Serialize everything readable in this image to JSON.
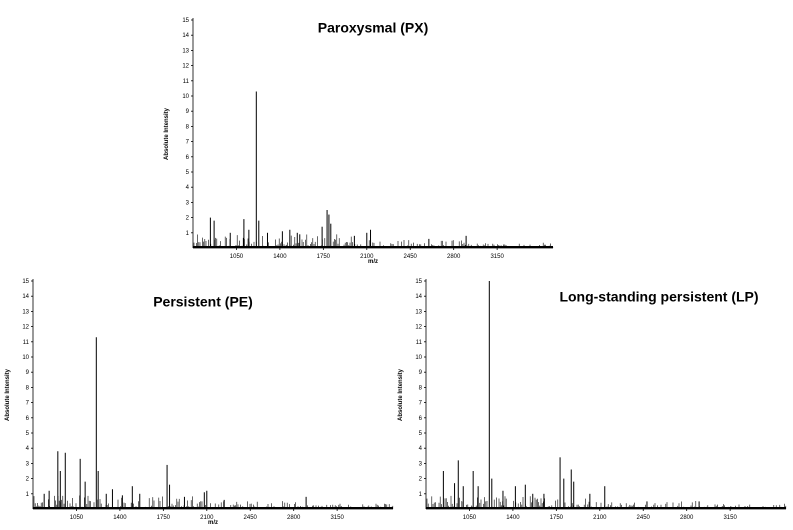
{
  "chart_data": [
    {
      "type": "line",
      "title": "Paroxysmal (PX)",
      "xlabel": "m/z",
      "ylabel": "Absolute Intensity",
      "ylim": [
        0,
        15
      ],
      "xlim": [
        700,
        3600
      ],
      "xticks": [
        1050,
        1400,
        1750,
        2100,
        2450,
        2800,
        3150
      ],
      "yticks": [
        1,
        2,
        3,
        4,
        5,
        6,
        7,
        8,
        9,
        10,
        11,
        12,
        13,
        14,
        15
      ],
      "grid": false,
      "peaks": [
        {
          "x": 840,
          "y": 2.0
        },
        {
          "x": 870,
          "y": 1.8
        },
        {
          "x": 1000,
          "y": 1.0
        },
        {
          "x": 1110,
          "y": 1.9
        },
        {
          "x": 1150,
          "y": 1.2
        },
        {
          "x": 1210,
          "y": 10.3
        },
        {
          "x": 1230,
          "y": 1.8
        },
        {
          "x": 1300,
          "y": 1.0
        },
        {
          "x": 1420,
          "y": 1.1
        },
        {
          "x": 1480,
          "y": 1.2
        },
        {
          "x": 1540,
          "y": 1.0
        },
        {
          "x": 1560,
          "y": 0.9
        },
        {
          "x": 1740,
          "y": 1.4
        },
        {
          "x": 1780,
          "y": 2.5
        },
        {
          "x": 1795,
          "y": 2.2
        },
        {
          "x": 1810,
          "y": 1.6
        },
        {
          "x": 2000,
          "y": 0.8
        },
        {
          "x": 2100,
          "y": 1.0
        },
        {
          "x": 2130,
          "y": 1.2
        },
        {
          "x": 2600,
          "y": 0.6
        },
        {
          "x": 2900,
          "y": 0.8
        }
      ]
    },
    {
      "type": "line",
      "title": "Persistent (PE)",
      "xlabel": "m/z",
      "ylabel": "Absolute Intensity",
      "ylim": [
        0,
        15
      ],
      "xlim": [
        700,
        3600
      ],
      "xticks": [
        1050,
        1400,
        1750,
        2100,
        2450,
        2800,
        3150
      ],
      "yticks": [
        1,
        2,
        3,
        4,
        5,
        6,
        7,
        8,
        9,
        10,
        11,
        12,
        13,
        14,
        15
      ],
      "grid": false,
      "peaks": [
        {
          "x": 790,
          "y": 1.0
        },
        {
          "x": 830,
          "y": 1.2
        },
        {
          "x": 900,
          "y": 3.8
        },
        {
          "x": 920,
          "y": 2.5
        },
        {
          "x": 960,
          "y": 3.7
        },
        {
          "x": 1080,
          "y": 3.3
        },
        {
          "x": 1120,
          "y": 1.8
        },
        {
          "x": 1210,
          "y": 11.3
        },
        {
          "x": 1225,
          "y": 2.5
        },
        {
          "x": 1290,
          "y": 1.0
        },
        {
          "x": 1340,
          "y": 1.3
        },
        {
          "x": 1420,
          "y": 0.9
        },
        {
          "x": 1500,
          "y": 1.5
        },
        {
          "x": 1560,
          "y": 1.0
        },
        {
          "x": 1780,
          "y": 2.9
        },
        {
          "x": 1800,
          "y": 1.6
        },
        {
          "x": 1920,
          "y": 0.8
        },
        {
          "x": 2080,
          "y": 1.1
        },
        {
          "x": 2100,
          "y": 1.2
        },
        {
          "x": 2240,
          "y": 0.6
        },
        {
          "x": 2900,
          "y": 0.8
        }
      ]
    },
    {
      "type": "line",
      "title": "Long-standing persistent (LP)",
      "xlabel": "",
      "ylabel": "Absolute Intensity",
      "ylim": [
        0,
        15
      ],
      "xlim": [
        700,
        3600
      ],
      "xticks": [
        1050,
        1400,
        1750,
        2100,
        2450,
        2800,
        3150
      ],
      "yticks": [
        1,
        2,
        3,
        4,
        5,
        6,
        7,
        8,
        9,
        10,
        11,
        12,
        13,
        14,
        15
      ],
      "grid": false,
      "peaks": [
        {
          "x": 840,
          "y": 2.5
        },
        {
          "x": 930,
          "y": 1.7
        },
        {
          "x": 960,
          "y": 3.2
        },
        {
          "x": 1000,
          "y": 1.5
        },
        {
          "x": 1080,
          "y": 2.5
        },
        {
          "x": 1120,
          "y": 1.5
        },
        {
          "x": 1210,
          "y": 15.0
        },
        {
          "x": 1230,
          "y": 2.0
        },
        {
          "x": 1320,
          "y": 1.2
        },
        {
          "x": 1420,
          "y": 1.5
        },
        {
          "x": 1500,
          "y": 1.6
        },
        {
          "x": 1560,
          "y": 1.0
        },
        {
          "x": 1650,
          "y": 1.0
        },
        {
          "x": 1780,
          "y": 3.4
        },
        {
          "x": 1810,
          "y": 2.0
        },
        {
          "x": 1870,
          "y": 2.6
        },
        {
          "x": 1890,
          "y": 1.8
        },
        {
          "x": 2020,
          "y": 1.0
        },
        {
          "x": 2140,
          "y": 1.5
        },
        {
          "x": 2480,
          "y": 0.5
        },
        {
          "x": 2900,
          "y": 0.5
        }
      ]
    }
  ]
}
